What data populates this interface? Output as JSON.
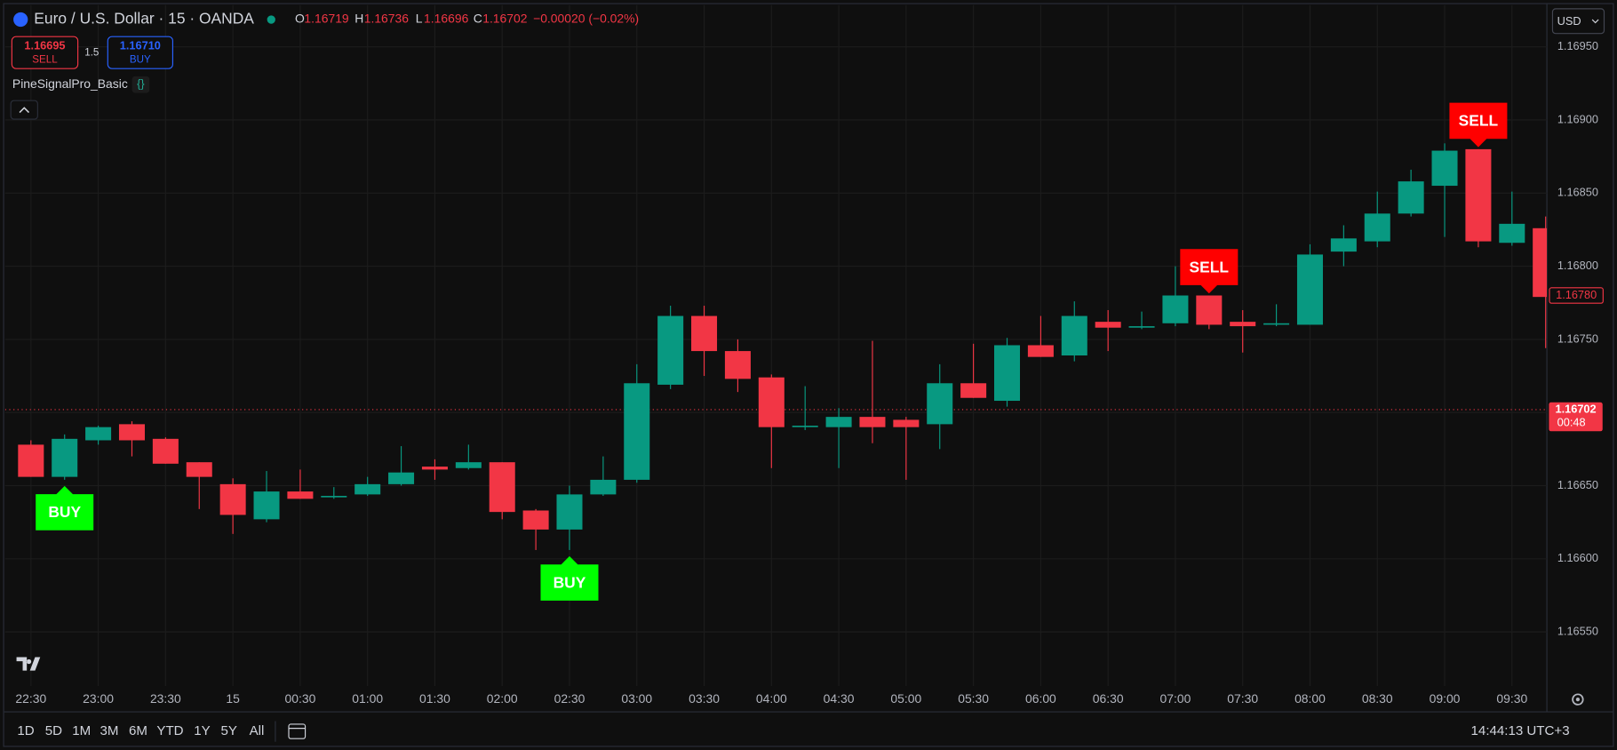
{
  "header": {
    "symbol": "Euro / U.S. Dollar · 15 · OANDA",
    "ohlc": [
      {
        "key": "O",
        "value": "1.16719"
      },
      {
        "key": "H",
        "value": "1.16736"
      },
      {
        "key": "L",
        "value": "1.16696"
      },
      {
        "key": "C",
        "value": "1.16702"
      }
    ],
    "change": "−0.00020 (−0.02%)"
  },
  "trade": {
    "sell_price": "1.16695",
    "sell": "SELL",
    "spread": "1.5",
    "buy_price": "1.16710",
    "buy": "BUY"
  },
  "indicator": {
    "name": "PineSignalPro_Basic",
    "badge": "{}"
  },
  "currency": "USD",
  "timeframes": [
    "1D",
    "5D",
    "1M",
    "3M",
    "6M",
    "YTD",
    "1Y",
    "5Y",
    "All"
  ],
  "clock": "14:44:13 UTC+3",
  "chart_data": {
    "type": "candlestick",
    "categories": [
      "22:30",
      null,
      "23:00",
      null,
      "23:30",
      null,
      "15",
      null,
      "00:30",
      null,
      "01:00",
      null,
      "01:30",
      null,
      "02:00",
      null,
      "02:30",
      null,
      "03:00",
      null,
      "03:30",
      null,
      "04:00",
      null,
      "04:30",
      null,
      "05:00",
      null,
      "05:30",
      null,
      "06:00",
      null,
      "06:30",
      null,
      "07:00",
      null,
      "07:30",
      null,
      "08:00",
      null,
      "08:30",
      null,
      "09:00",
      null,
      "09:30",
      null
    ],
    "open": [
      1.16678,
      1.16656,
      1.16681,
      1.16692,
      1.16682,
      1.16666,
      1.16651,
      1.16627,
      1.16646,
      1.16642,
      1.16644,
      1.16651,
      1.16663,
      1.16662,
      1.16666,
      1.16633,
      1.1662,
      1.16644,
      1.16654,
      1.16719,
      1.16766,
      1.16742,
      1.16724,
      1.1669,
      1.1669,
      1.16697,
      1.16695,
      1.16692,
      1.1672,
      1.16708,
      1.16746,
      1.16739,
      1.16762,
      1.16758,
      1.16761,
      1.1678,
      1.16762,
      1.1676,
      1.1676,
      1.1681,
      1.16817,
      1.16836,
      1.16855,
      1.1688,
      1.16816,
      1.16826
    ],
    "high": [
      1.16681,
      1.16685,
      1.16691,
      1.16694,
      1.16683,
      1.16666,
      1.16655,
      1.1666,
      1.16661,
      1.16649,
      1.16656,
      1.16677,
      1.16668,
      1.16678,
      1.16666,
      1.16634,
      1.1665,
      1.1667,
      1.16733,
      1.16773,
      1.16773,
      1.1675,
      1.16726,
      1.16718,
      1.16703,
      1.16749,
      1.16697,
      1.16733,
      1.16747,
      1.16751,
      1.16766,
      1.16776,
      1.1677,
      1.16769,
      1.168,
      1.1678,
      1.1677,
      1.16774,
      1.16815,
      1.16828,
      1.16851,
      1.16866,
      1.16884,
      1.1688,
      1.16851,
      1.16834
    ],
    "low": [
      1.16656,
      1.16654,
      1.16678,
      1.1667,
      1.16665,
      1.16634,
      1.16617,
      1.16625,
      1.16641,
      1.16641,
      1.16643,
      1.1665,
      1.16654,
      1.16661,
      1.16627,
      1.16606,
      1.16606,
      1.16643,
      1.16652,
      1.16716,
      1.16725,
      1.16714,
      1.16662,
      1.16688,
      1.16662,
      1.16679,
      1.16654,
      1.16675,
      1.1671,
      1.16704,
      1.16738,
      1.16735,
      1.16742,
      1.16757,
      1.16759,
      1.16757,
      1.16741,
      1.16759,
      1.1676,
      1.168,
      1.16813,
      1.16834,
      1.1682,
      1.16813,
      1.16814,
      1.16744
    ],
    "close": [
      1.16656,
      1.16682,
      1.1669,
      1.16681,
      1.16665,
      1.16656,
      1.1663,
      1.16646,
      1.16641,
      1.16643,
      1.16651,
      1.16659,
      1.16661,
      1.16666,
      1.16632,
      1.1662,
      1.16644,
      1.16654,
      1.1672,
      1.16766,
      1.16742,
      1.16723,
      1.1669,
      1.16691,
      1.16697,
      1.1669,
      1.1669,
      1.1672,
      1.1671,
      1.16746,
      1.16738,
      1.16766,
      1.16758,
      1.16759,
      1.1678,
      1.1676,
      1.16759,
      1.16761,
      1.16808,
      1.16819,
      1.16836,
      1.16858,
      1.16879,
      1.16817,
      1.16829,
      1.16779
    ],
    "up_color": "#089981",
    "down_color": "#f23645",
    "ylim": [
      1.16513,
      1.16982
    ],
    "yticks": [
      {
        "value": 1.1655,
        "label": "1.16550"
      },
      {
        "value": 1.166,
        "label": "1.16600"
      },
      {
        "value": 1.1665,
        "label": "1.16650"
      },
      {
        "value": 1.167,
        "label": "1.16700"
      },
      {
        "value": 1.1675,
        "label": "1.16750"
      },
      {
        "value": 1.168,
        "label": "1.16800"
      },
      {
        "value": 1.1685,
        "label": "1.16850"
      },
      {
        "value": 1.169,
        "label": "1.16900"
      },
      {
        "value": 1.1695,
        "label": "1.16950"
      }
    ],
    "grid": true,
    "signals": [
      {
        "label": "BUY",
        "candle": 1,
        "color": "#00ff00"
      },
      {
        "label": "BUY",
        "candle": 16,
        "color": "#00ff00"
      },
      {
        "label": "SELL",
        "candle": 35,
        "color": "#ff0000"
      },
      {
        "label": "SELL",
        "candle": 43,
        "color": "#ff0000"
      }
    ],
    "marker_price": {
      "value": 1.1678,
      "label": "1.16780"
    },
    "last_price": {
      "value": 1.16702,
      "label": "1.16702"
    },
    "countdown": "00:48"
  }
}
